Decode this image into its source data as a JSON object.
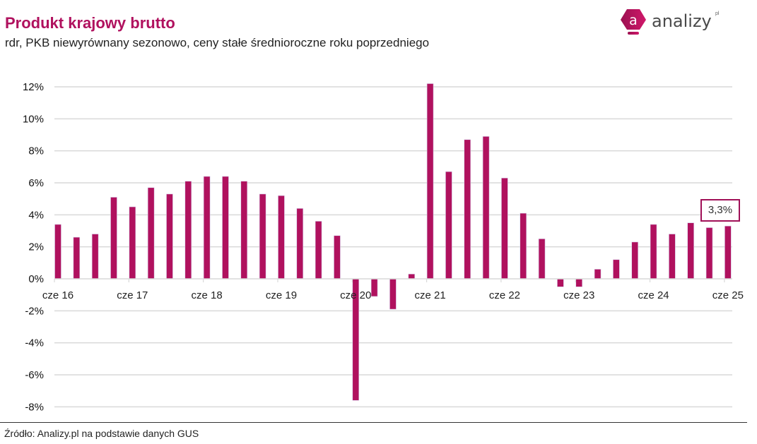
{
  "header": {
    "title": "Produkt krajowy brutto",
    "subtitle": "rdr, PKB niewyrównany sezonowo, ceny stałe średnioroczne roku poprzedniego"
  },
  "logo": {
    "name": "analizy",
    "superscript": "pl",
    "glyph": "a",
    "icon": "analizy-logo-icon"
  },
  "footer": {
    "source": "Źródło: Analizy.pl na podstawie danych GUS"
  },
  "annotation": {
    "label": "3,3%"
  },
  "colors": {
    "bar": "#b0115e",
    "title": "#b0115e",
    "grid": "#d9d9d9",
    "callout_border": "#a01158"
  },
  "chart_data": {
    "type": "bar",
    "title": "Produkt krajowy brutto",
    "subtitle": "rdr, PKB niewyrównany sezonowo, ceny stałe średnioroczne roku poprzedniego",
    "xlabel": "",
    "ylabel": "",
    "ylim": [
      -8,
      12
    ],
    "yticks": [
      12,
      10,
      8,
      6,
      4,
      2,
      0,
      -2,
      -4,
      -6,
      -8
    ],
    "ytick_labels": [
      "12%",
      "10%",
      "8%",
      "6%",
      "4%",
      "2%",
      "0%",
      "-2%",
      "-4%",
      "-6%",
      "-8%"
    ],
    "grid": true,
    "legend": "none",
    "xtick_labels": [
      "cze 16",
      "cze 17",
      "cze 18",
      "cze 19",
      "cze 20",
      "cze 21",
      "cze 22",
      "cze 23",
      "cze 24",
      "cze 25"
    ],
    "xtick_every": 4,
    "categories": [
      "Q2 16",
      "Q3 16",
      "Q4 16",
      "Q1 17",
      "Q2 17",
      "Q3 17",
      "Q4 17",
      "Q1 18",
      "Q2 18",
      "Q3 18",
      "Q4 18",
      "Q1 19",
      "Q2 19",
      "Q3 19",
      "Q4 19",
      "Q1 20",
      "Q2 20",
      "Q3 20",
      "Q4 20",
      "Q1 21",
      "Q2 21",
      "Q3 21",
      "Q4 21",
      "Q1 22",
      "Q2 22",
      "Q3 22",
      "Q4 22",
      "Q1 23",
      "Q2 23",
      "Q3 23",
      "Q4 23",
      "Q1 24",
      "Q2 24",
      "Q3 24",
      "Q4 24",
      "Q1 25",
      "Q2 25"
    ],
    "values": [
      3.4,
      2.6,
      2.8,
      5.1,
      4.5,
      5.7,
      5.3,
      6.1,
      6.4,
      6.4,
      6.1,
      5.3,
      5.2,
      4.4,
      3.6,
      2.7,
      -7.6,
      -1.1,
      -1.9,
      0.3,
      12.2,
      6.7,
      8.7,
      8.9,
      6.3,
      4.1,
      2.5,
      -0.5,
      -0.5,
      0.6,
      1.2,
      2.3,
      3.4,
      2.8,
      3.5,
      3.2,
      3.3
    ],
    "annotations": [
      {
        "category": "Q2 25",
        "text": "3,3%"
      }
    ]
  }
}
